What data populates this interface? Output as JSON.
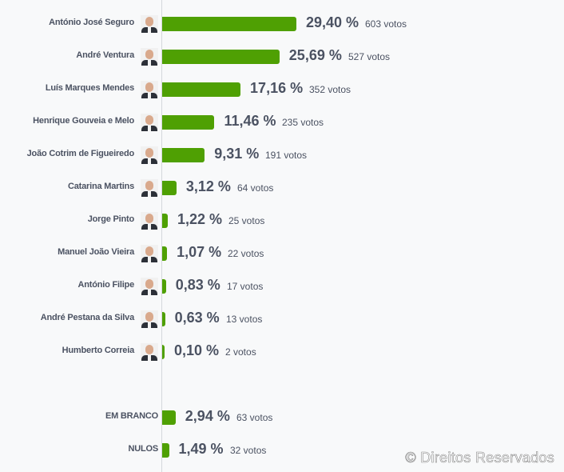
{
  "chart_data": {
    "type": "bar",
    "orientation": "horizontal",
    "bar_color": "#4fa003",
    "unit_label": "votos",
    "categories": [
      "António José Seguro",
      "André Ventura",
      "Luís Marques Mendes",
      "Henrique Gouveia e Melo",
      "João Cotrim de Figueiredo",
      "Catarina Martins",
      "Jorge Pinto",
      "Manuel João Vieira",
      "António Filipe",
      "André Pestana da Silva",
      "Humberto Correia",
      "EM BRANCO",
      "NULOS"
    ],
    "values": [
      29.4,
      25.69,
      17.16,
      11.46,
      9.31,
      3.12,
      1.22,
      1.07,
      0.83,
      0.63,
      0.1,
      2.94,
      1.49
    ],
    "value_labels": [
      "29,40 %",
      "25,69 %",
      "17,16 %",
      "11,46 %",
      "9,31 %",
      "3,12 %",
      "1,22 %",
      "1,07 %",
      "0,83 %",
      "0,63 %",
      "0,10 %",
      "2,94 %",
      "1,49 %"
    ],
    "votes": [
      "603 votos",
      "527 votos",
      "352 votos",
      "235 votos",
      "191 votos",
      "64 votos",
      "25 votos",
      "22 votos",
      "17 votos",
      "13 votos",
      "2 votos",
      "63 votos",
      "32 votos"
    ],
    "has_avatar": [
      true,
      true,
      true,
      true,
      true,
      true,
      true,
      true,
      true,
      true,
      true,
      false,
      false
    ],
    "grid": false
  },
  "watermark": "© Direitos Reservados"
}
